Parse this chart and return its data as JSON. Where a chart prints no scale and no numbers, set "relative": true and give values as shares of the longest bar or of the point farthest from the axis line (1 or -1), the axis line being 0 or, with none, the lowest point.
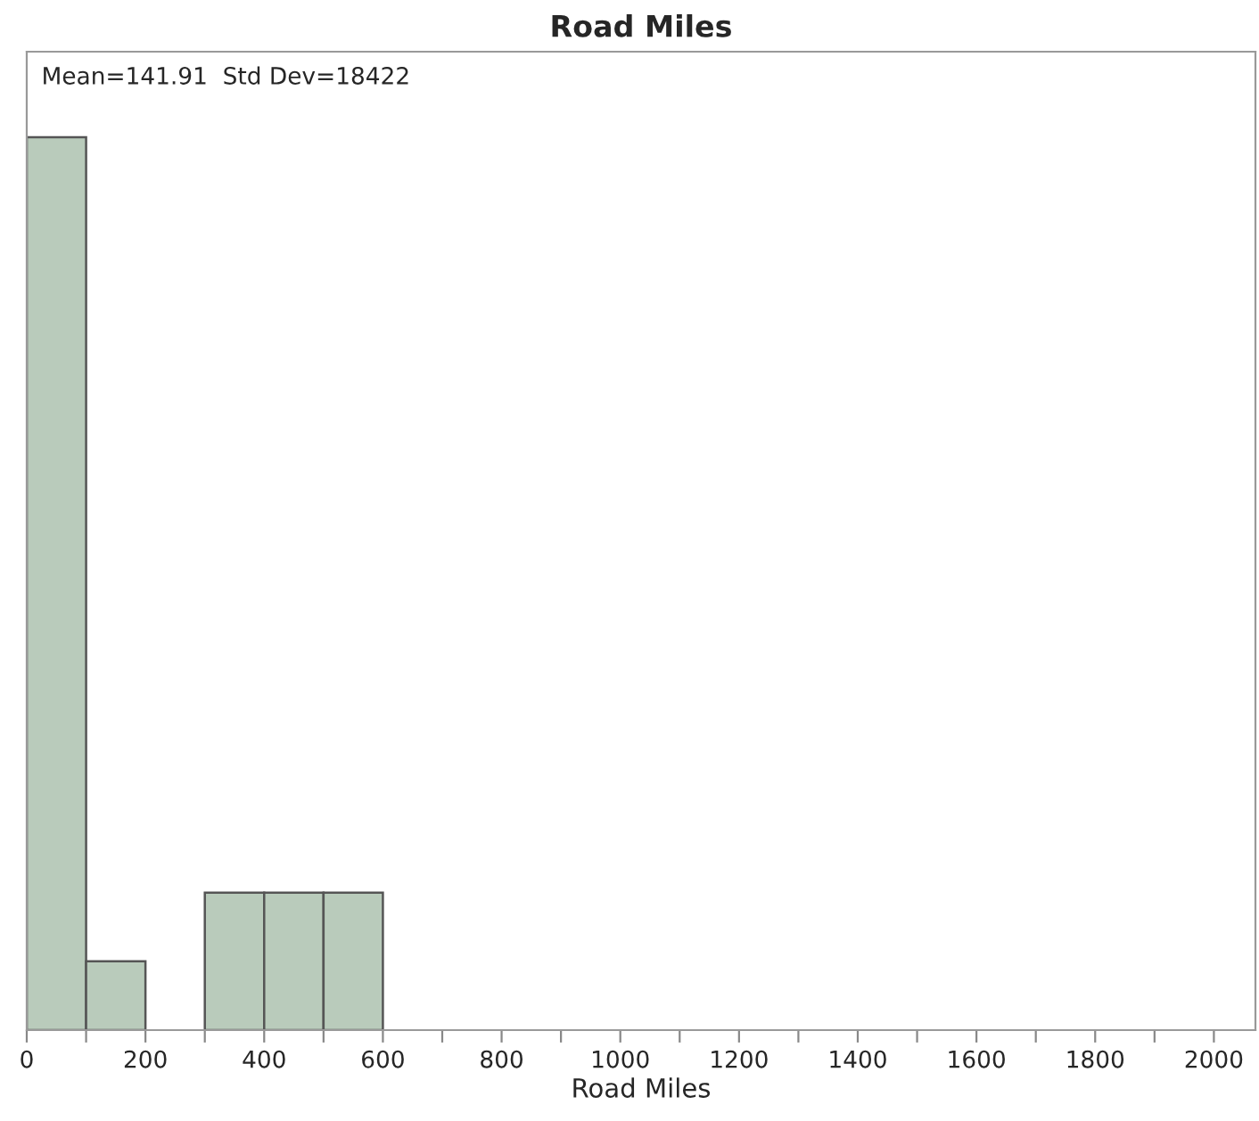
{
  "chart_data": {
    "type": "bar",
    "title": "Road Miles",
    "xlabel": "Road Miles",
    "annotations": [
      "Mean=141.91  Std Dev=18422"
    ],
    "x": [
      50,
      150,
      250,
      350,
      450,
      550
    ],
    "values": [
      1,
      0.077,
      0,
      0.154,
      0.154,
      0.154
    ],
    "relative": true,
    "color": "#b9cbbb",
    "xlim": [
      0,
      2070
    ],
    "xticks": [
      0,
      {
        "value": 100,
        "label": null
      },
      200,
      {
        "value": 300,
        "label": null
      },
      400,
      {
        "value": 500,
        "label": null
      },
      600,
      {
        "value": 700,
        "label": null
      },
      800,
      {
        "value": 900,
        "label": null
      },
      1000,
      {
        "value": 1100,
        "label": null
      },
      1200,
      {
        "value": 1300,
        "label": null
      },
      1400,
      {
        "value": 1500,
        "label": null
      },
      1600,
      {
        "value": 1700,
        "label": null
      },
      1800,
      {
        "value": 1900,
        "label": null
      },
      2000
    ],
    "grid": false,
    "legend": false
  }
}
